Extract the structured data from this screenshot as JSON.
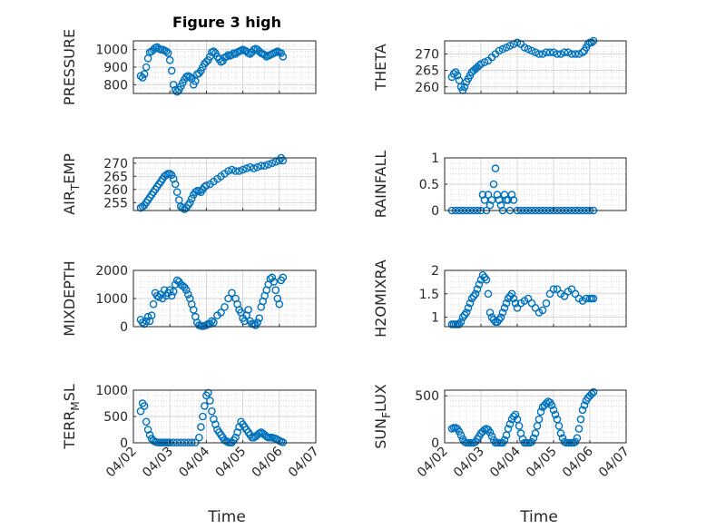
{
  "title": "Figure 3 high",
  "chart_data": [
    {
      "type": "scatter",
      "ylabel": "PRESSURE",
      "ylim": [
        750,
        1050
      ],
      "yticks": [
        800,
        900,
        1000
      ],
      "x": [
        0.2,
        0.25,
        0.3,
        0.35,
        0.4,
        0.45,
        0.5,
        0.55,
        0.6,
        0.65,
        0.7,
        0.75,
        0.8,
        0.85,
        0.9,
        0.95,
        1.0,
        1.05,
        1.1,
        1.15,
        1.2,
        1.25,
        1.3,
        1.35,
        1.4,
        1.45,
        1.5,
        1.55,
        1.6,
        1.65,
        1.7,
        1.75,
        1.8,
        1.85,
        1.9,
        1.95,
        2.0,
        2.05,
        2.1,
        2.15,
        2.2,
        2.25,
        2.3,
        2.35,
        2.4,
        2.45,
        2.5,
        2.55,
        2.6,
        2.65,
        2.7,
        2.75,
        2.8,
        2.85,
        2.9,
        2.95,
        3.0,
        3.05,
        3.1,
        3.15,
        3.2,
        3.25,
        3.3,
        3.35,
        3.4,
        3.45,
        3.5,
        3.55,
        3.6,
        3.65,
        3.7,
        3.75,
        3.8,
        3.85,
        3.9,
        3.95,
        4.0,
        4.05,
        4.1
      ],
      "y": [
        850,
        840,
        860,
        900,
        950,
        985,
        990,
        1000,
        1010,
        1015,
        1005,
        1000,
        1000,
        995,
        990,
        980,
        940,
        880,
        800,
        770,
        760,
        770,
        790,
        810,
        830,
        845,
        850,
        845,
        835,
        800,
        820,
        860,
        865,
        880,
        900,
        920,
        930,
        940,
        960,
        985,
        990,
        980,
        960,
        945,
        930,
        935,
        955,
        960,
        970,
        965,
        970,
        980,
        975,
        985,
        990,
        995,
        1000,
        995,
        990,
        980,
        975,
        985,
        1000,
        1005,
        1000,
        990,
        980,
        975,
        970,
        960,
        965,
        970,
        975,
        980,
        985,
        990,
        985,
        980,
        960
      ]
    },
    {
      "type": "scatter",
      "ylabel": "THETA",
      "ylim": [
        258,
        274
      ],
      "yticks": [
        260,
        265,
        270
      ],
      "x": [
        0.2,
        0.25,
        0.3,
        0.35,
        0.4,
        0.45,
        0.5,
        0.55,
        0.6,
        0.65,
        0.7,
        0.75,
        0.8,
        0.85,
        0.9,
        0.95,
        1.0,
        1.1,
        1.2,
        1.3,
        1.4,
        1.5,
        1.6,
        1.7,
        1.8,
        1.9,
        2.0,
        2.1,
        2.2,
        2.3,
        2.4,
        2.5,
        2.6,
        2.7,
        2.8,
        2.9,
        3.0,
        3.1,
        3.2,
        3.3,
        3.4,
        3.5,
        3.6,
        3.7,
        3.8,
        3.85,
        3.9,
        3.95,
        4.0,
        4.05,
        4.1
      ],
      "y": [
        263,
        264,
        264.5,
        263.5,
        262,
        260,
        259,
        260,
        261.5,
        262.5,
        263.5,
        264.5,
        265,
        265.5,
        266,
        266.5,
        267,
        267.5,
        268,
        269,
        270,
        271,
        271.5,
        272,
        272.5,
        273,
        273.5,
        273,
        272,
        271.5,
        271,
        270.5,
        270,
        270,
        270.5,
        270.5,
        270.5,
        270,
        270,
        270.5,
        270.5,
        270,
        270,
        270,
        270.5,
        271,
        272,
        273,
        273.5,
        273.5,
        274
      ]
    },
    {
      "type": "scatter",
      "ylabel": "AIR_TEMP",
      "ylim": [
        252,
        272
      ],
      "yticks": [
        255,
        260,
        265,
        270
      ],
      "x": [
        0.2,
        0.25,
        0.3,
        0.35,
        0.4,
        0.45,
        0.5,
        0.55,
        0.6,
        0.65,
        0.7,
        0.75,
        0.8,
        0.85,
        0.9,
        0.95,
        1.0,
        1.05,
        1.1,
        1.15,
        1.2,
        1.25,
        1.3,
        1.35,
        1.4,
        1.45,
        1.5,
        1.55,
        1.6,
        1.65,
        1.7,
        1.75,
        1.8,
        1.85,
        1.9,
        1.95,
        2.0,
        2.1,
        2.2,
        2.3,
        2.4,
        2.5,
        2.6,
        2.7,
        2.8,
        2.9,
        3.0,
        3.1,
        3.2,
        3.3,
        3.4,
        3.5,
        3.6,
        3.7,
        3.8,
        3.9,
        4.0,
        4.05,
        4.1
      ],
      "y": [
        253,
        253.5,
        254,
        255,
        256,
        257,
        258,
        259,
        260,
        261,
        262,
        263,
        264,
        265,
        265.5,
        266,
        266,
        265.5,
        264,
        262,
        259,
        256,
        253.5,
        253,
        252.5,
        253,
        254,
        255,
        256.5,
        258,
        259,
        259.5,
        259.5,
        259,
        260,
        261,
        261.5,
        262,
        263,
        264,
        265,
        266,
        267,
        267.5,
        267,
        267,
        267.5,
        268,
        268.5,
        268,
        268.5,
        269,
        269,
        269.5,
        270,
        270.5,
        271,
        272,
        271
      ]
    },
    {
      "type": "scatter",
      "ylabel": "RAINFALL",
      "ylim": [
        0,
        1
      ],
      "yticks": [
        0,
        0.5,
        1
      ],
      "x": [
        0.2,
        0.3,
        0.4,
        0.5,
        0.6,
        0.7,
        0.8,
        0.9,
        1.0,
        1.05,
        1.1,
        1.15,
        1.2,
        1.25,
        1.3,
        1.35,
        1.4,
        1.45,
        1.5,
        1.55,
        1.6,
        1.65,
        1.7,
        1.75,
        1.8,
        1.85,
        1.9,
        2.0,
        2.1,
        2.2,
        2.3,
        2.4,
        2.5,
        2.6,
        2.7,
        2.8,
        2.9,
        3.0,
        3.1,
        3.2,
        3.3,
        3.4,
        3.5,
        3.6,
        3.7,
        3.8,
        3.9,
        4.0,
        4.1
      ],
      "y": [
        0,
        0,
        0,
        0,
        0,
        0,
        0,
        0,
        0,
        0.3,
        0.2,
        0,
        0.3,
        0.1,
        0.2,
        0.5,
        0.8,
        0.3,
        0.2,
        0.1,
        0,
        0.3,
        0.2,
        0.2,
        0,
        0.3,
        0.2,
        0,
        0,
        0,
        0,
        0,
        0,
        0,
        0,
        0,
        0,
        0,
        0,
        0,
        0,
        0,
        0,
        0,
        0,
        0,
        0,
        0,
        0
      ]
    },
    {
      "type": "scatter",
      "ylabel": "MIXDEPTH",
      "ylim": [
        0,
        2000
      ],
      "yticks": [
        0,
        1000,
        2000
      ],
      "x": [
        0.2,
        0.25,
        0.3,
        0.35,
        0.4,
        0.45,
        0.5,
        0.55,
        0.6,
        0.65,
        0.7,
        0.75,
        0.8,
        0.85,
        0.9,
        0.95,
        1.0,
        1.05,
        1.1,
        1.15,
        1.2,
        1.25,
        1.3,
        1.35,
        1.4,
        1.45,
        1.5,
        1.55,
        1.6,
        1.65,
        1.7,
        1.75,
        1.8,
        1.85,
        1.9,
        1.95,
        2.0,
        2.05,
        2.1,
        2.15,
        2.2,
        2.3,
        2.4,
        2.5,
        2.6,
        2.7,
        2.8,
        2.85,
        2.9,
        2.95,
        3.0,
        3.05,
        3.1,
        3.15,
        3.2,
        3.25,
        3.3,
        3.35,
        3.4,
        3.45,
        3.5,
        3.55,
        3.6,
        3.65,
        3.7,
        3.75,
        3.8,
        3.85,
        3.9,
        3.95,
        4.0,
        4.05,
        4.1
      ],
      "y": [
        250,
        150,
        100,
        200,
        350,
        200,
        400,
        800,
        1200,
        1100,
        1050,
        1150,
        1000,
        1300,
        1100,
        1200,
        1300,
        1100,
        1250,
        1500,
        1650,
        1600,
        1500,
        1450,
        1400,
        1300,
        1150,
        1000,
        800,
        600,
        350,
        150,
        50,
        30,
        20,
        30,
        50,
        100,
        100,
        200,
        150,
        400,
        500,
        700,
        1000,
        1200,
        1000,
        800,
        600,
        500,
        300,
        200,
        400,
        600,
        200,
        100,
        100,
        50,
        150,
        300,
        700,
        900,
        1100,
        1300,
        1500,
        1700,
        1750,
        1600,
        1300,
        1000,
        800,
        1650,
        1750
      ]
    },
    {
      "type": "scatter",
      "ylabel": "H2OMIXRA",
      "ylim": [
        0.8,
        2.0
      ],
      "yticks": [
        1,
        1.5,
        2
      ],
      "x": [
        0.2,
        0.25,
        0.3,
        0.35,
        0.4,
        0.45,
        0.5,
        0.55,
        0.6,
        0.65,
        0.7,
        0.75,
        0.8,
        0.85,
        0.9,
        0.95,
        1.0,
        1.05,
        1.1,
        1.15,
        1.2,
        1.25,
        1.3,
        1.35,
        1.4,
        1.45,
        1.5,
        1.55,
        1.6,
        1.65,
        1.7,
        1.75,
        1.8,
        1.85,
        1.9,
        1.95,
        2.0,
        2.1,
        2.2,
        2.3,
        2.4,
        2.5,
        2.6,
        2.7,
        2.8,
        2.9,
        3.0,
        3.1,
        3.2,
        3.3,
        3.4,
        3.5,
        3.6,
        3.7,
        3.8,
        3.9,
        4.0,
        4.05,
        4.1
      ],
      "y": [
        0.85,
        0.85,
        0.85,
        0.85,
        0.85,
        0.9,
        1.0,
        1.05,
        1.1,
        1.2,
        1.3,
        1.4,
        1.45,
        1.5,
        1.6,
        1.7,
        1.8,
        1.9,
        1.85,
        1.8,
        1.5,
        1.1,
        1.0,
        0.95,
        0.9,
        0.9,
        0.95,
        1.0,
        1.1,
        1.2,
        1.3,
        1.4,
        1.45,
        1.5,
        1.4,
        1.3,
        1.2,
        1.3,
        1.35,
        1.4,
        1.3,
        1.2,
        1.1,
        1.15,
        1.3,
        1.5,
        1.6,
        1.6,
        1.5,
        1.45,
        1.55,
        1.6,
        1.5,
        1.4,
        1.35,
        1.4,
        1.4,
        1.4,
        1.4
      ]
    },
    {
      "type": "scatter",
      "ylabel": "TERR_MSL",
      "ylim": [
        0,
        1000
      ],
      "yticks": [
        0,
        500,
        1000
      ],
      "x": [
        0.2,
        0.25,
        0.3,
        0.35,
        0.4,
        0.45,
        0.5,
        0.55,
        0.6,
        0.65,
        0.7,
        0.75,
        0.8,
        0.85,
        0.9,
        0.95,
        1.0,
        1.1,
        1.2,
        1.3,
        1.4,
        1.5,
        1.6,
        1.7,
        1.8,
        1.85,
        1.9,
        1.95,
        2.0,
        2.05,
        2.1,
        2.15,
        2.2,
        2.25,
        2.3,
        2.35,
        2.4,
        2.45,
        2.5,
        2.55,
        2.6,
        2.65,
        2.7,
        2.75,
        2.8,
        2.85,
        2.9,
        2.95,
        3.0,
        3.05,
        3.1,
        3.15,
        3.2,
        3.25,
        3.3,
        3.35,
        3.4,
        3.45,
        3.5,
        3.55,
        3.6,
        3.65,
        3.7,
        3.75,
        3.8,
        3.85,
        3.9,
        3.95,
        4.0,
        4.05,
        4.1
      ],
      "y": [
        600,
        750,
        700,
        400,
        250,
        150,
        80,
        40,
        20,
        10,
        5,
        5,
        5,
        5,
        5,
        5,
        5,
        5,
        5,
        5,
        5,
        5,
        5,
        5,
        100,
        300,
        500,
        700,
        900,
        950,
        800,
        600,
        450,
        350,
        250,
        200,
        150,
        100,
        50,
        30,
        10,
        5,
        5,
        50,
        100,
        200,
        300,
        400,
        350,
        300,
        250,
        200,
        150,
        100,
        100,
        120,
        150,
        180,
        200,
        180,
        150,
        120,
        100,
        100,
        100,
        90,
        80,
        60,
        40,
        20,
        10
      ]
    },
    {
      "type": "scatter",
      "ylabel": "SUN_FLUX",
      "ylim": [
        0,
        560
      ],
      "yticks": [
        0,
        500
      ],
      "x": [
        0.2,
        0.25,
        0.3,
        0.35,
        0.4,
        0.45,
        0.5,
        0.55,
        0.6,
        0.65,
        0.7,
        0.75,
        0.8,
        0.85,
        0.9,
        0.95,
        1.0,
        1.05,
        1.1,
        1.15,
        1.2,
        1.25,
        1.3,
        1.35,
        1.4,
        1.45,
        1.5,
        1.55,
        1.6,
        1.65,
        1.7,
        1.75,
        1.8,
        1.85,
        1.9,
        1.95,
        2.0,
        2.05,
        2.1,
        2.15,
        2.2,
        2.25,
        2.3,
        2.35,
        2.4,
        2.45,
        2.5,
        2.55,
        2.6,
        2.65,
        2.7,
        2.75,
        2.8,
        2.85,
        2.9,
        2.95,
        3.0,
        3.05,
        3.1,
        3.15,
        3.2,
        3.25,
        3.3,
        3.35,
        3.4,
        3.45,
        3.5,
        3.55,
        3.6,
        3.65,
        3.7,
        3.75,
        3.8,
        3.85,
        3.9,
        3.95,
        4.0,
        4.05,
        4.1
      ],
      "y": [
        150,
        160,
        160,
        150,
        120,
        80,
        40,
        10,
        0,
        0,
        0,
        0,
        0,
        10,
        40,
        70,
        100,
        120,
        140,
        150,
        140,
        110,
        70,
        30,
        0,
        0,
        0,
        0,
        0,
        30,
        80,
        150,
        200,
        250,
        280,
        300,
        250,
        180,
        100,
        40,
        0,
        0,
        0,
        0,
        10,
        50,
        100,
        180,
        250,
        330,
        380,
        400,
        420,
        440,
        430,
        400,
        350,
        300,
        250,
        180,
        100,
        50,
        10,
        0,
        0,
        0,
        0,
        0,
        10,
        50,
        150,
        250,
        350,
        400,
        450,
        480,
        500,
        520,
        540
      ]
    }
  ],
  "x_ticks": [
    "04/02",
    "04/03",
    "04/04",
    "04/05",
    "04/06",
    "04/07"
  ],
  "xlabel": "Time",
  "colors": {
    "marker": "#0072BD",
    "axis": "#262626",
    "grid": "#c8c8c8"
  }
}
